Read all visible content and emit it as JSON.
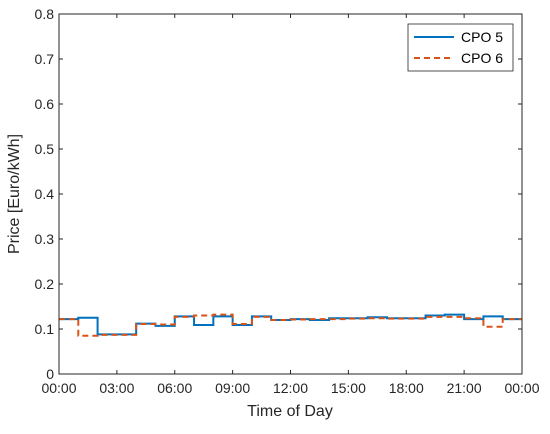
{
  "chart_data": {
    "type": "line",
    "xlabel": "Time of Day",
    "ylabel": "Price [Euro/kWh]",
    "xlim": [
      0,
      24
    ],
    "ylim": [
      0,
      0.8
    ],
    "xticks": [
      {
        "value": 0,
        "label": "00:00"
      },
      {
        "value": 3,
        "label": "03:00"
      },
      {
        "value": 6,
        "label": "06:00"
      },
      {
        "value": 9,
        "label": "09:00"
      },
      {
        "value": 12,
        "label": "12:00"
      },
      {
        "value": 15,
        "label": "15:00"
      },
      {
        "value": 18,
        "label": "18:00"
      },
      {
        "value": 21,
        "label": "21:00"
      },
      {
        "value": 24,
        "label": "00:00"
      }
    ],
    "yticks": [
      {
        "value": 0,
        "label": "0"
      },
      {
        "value": 0.1,
        "label": "0.1"
      },
      {
        "value": 0.2,
        "label": "0.2"
      },
      {
        "value": 0.3,
        "label": "0.3"
      },
      {
        "value": 0.4,
        "label": "0.4"
      },
      {
        "value": 0.5,
        "label": "0.5"
      },
      {
        "value": 0.6,
        "label": "0.6"
      },
      {
        "value": 0.7,
        "label": "0.7"
      },
      {
        "value": 0.8,
        "label": "0.8"
      }
    ],
    "grid": false,
    "legend_position": "top-right",
    "step": "post",
    "x": [
      0,
      1,
      2,
      3,
      4,
      5,
      6,
      7,
      8,
      9,
      10,
      11,
      12,
      13,
      14,
      15,
      16,
      17,
      18,
      19,
      20,
      21,
      22,
      23,
      24
    ],
    "series": [
      {
        "name": "CPO 5",
        "color": "#0072BD",
        "style": "solid",
        "values": [
          0.122,
          0.125,
          0.088,
          0.088,
          0.112,
          0.107,
          0.128,
          0.109,
          0.128,
          0.109,
          0.128,
          0.12,
          0.122,
          0.12,
          0.124,
          0.124,
          0.126,
          0.124,
          0.124,
          0.13,
          0.132,
          0.122,
          0.128,
          0.122,
          0.122
        ]
      },
      {
        "name": "CPO 6",
        "color": "#D95319",
        "style": "dashed",
        "values": [
          0.122,
          0.085,
          0.087,
          0.087,
          0.111,
          0.11,
          0.127,
          0.13,
          0.132,
          0.111,
          0.127,
          0.12,
          0.121,
          0.122,
          0.122,
          0.123,
          0.124,
          0.123,
          0.123,
          0.127,
          0.127,
          0.124,
          0.105,
          0.122,
          0.122
        ]
      }
    ]
  }
}
